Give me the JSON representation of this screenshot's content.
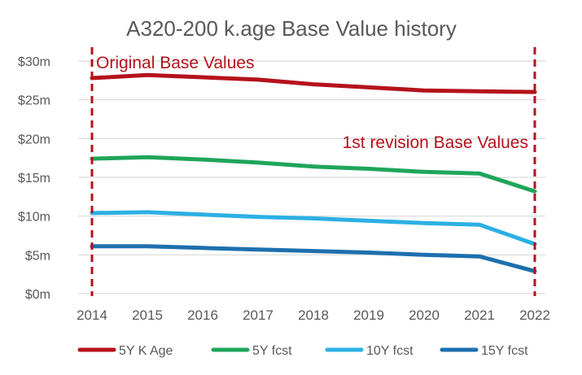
{
  "chart_data": {
    "type": "line",
    "title": "A320-200 k.age Base Value history",
    "xlabel": "",
    "ylabel": "",
    "categories": [
      "2014",
      "2015",
      "2016",
      "2017",
      "2018",
      "2019",
      "2020",
      "2021",
      "2022"
    ],
    "ylim": [
      0,
      30
    ],
    "y_ticks": [
      0,
      5,
      10,
      15,
      20,
      25,
      30
    ],
    "y_tick_labels": [
      "$0m",
      "$5m",
      "$10m",
      "$15m",
      "$20m",
      "$25m",
      "$30m"
    ],
    "grid": "horizontal",
    "legend_position": "bottom",
    "series": [
      {
        "name": "5Y K Age",
        "color": "#b5121b",
        "values": [
          27.8,
          28.2,
          27.9,
          27.6,
          27.0,
          26.6,
          26.2,
          26.1,
          26.0
        ]
      },
      {
        "name": "5Y fcst",
        "color": "#1fa55a",
        "values": [
          17.4,
          17.6,
          17.3,
          16.9,
          16.4,
          16.1,
          15.7,
          15.5,
          13.2
        ]
      },
      {
        "name": "10Y fcst",
        "color": "#2cb0e3",
        "values": [
          10.4,
          10.5,
          10.2,
          9.9,
          9.7,
          9.4,
          9.1,
          8.9,
          6.4
        ]
      },
      {
        "name": "15Y fcst",
        "color": "#1e6fae",
        "values": [
          6.1,
          6.1,
          5.9,
          5.7,
          5.5,
          5.3,
          5.0,
          4.8,
          2.9
        ]
      }
    ],
    "vertical_markers": [
      {
        "category": "2014",
        "style": "dashed",
        "color": "#b5121b"
      },
      {
        "category": "2022",
        "style": "dashed",
        "color": "#b5121b"
      }
    ],
    "annotations": [
      {
        "text": "Original Base Values",
        "near": "top-left",
        "color": "#b5121b"
      },
      {
        "text": "1st revision Base Values",
        "near": "right",
        "color": "#b5121b"
      }
    ]
  }
}
